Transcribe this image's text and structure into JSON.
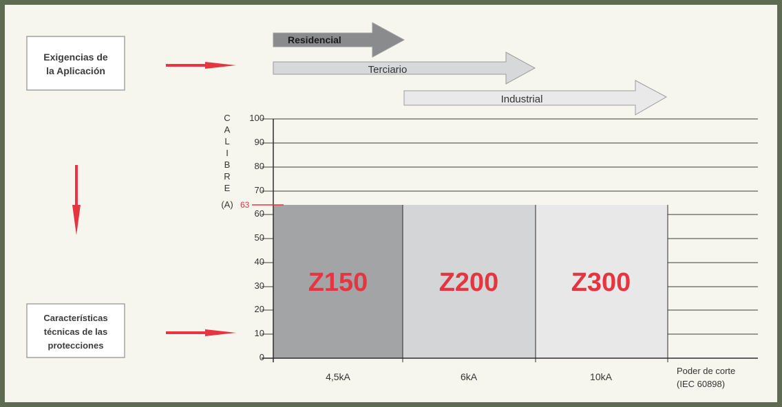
{
  "left_boxes": {
    "top": [
      "Exigencias de",
      "la Aplicación"
    ],
    "bottom": [
      "Características",
      "técnicas de las",
      "protecciones"
    ]
  },
  "application_arrows": [
    {
      "label": "Residencial",
      "color": "#8a8b8d"
    },
    {
      "label": "Terciario",
      "color": "#d7d8d9"
    },
    {
      "label": "Industrial",
      "color": "#e8e9e8"
    }
  ],
  "axis": {
    "ylabel_letters": [
      "C",
      "A",
      "L",
      "I",
      "B",
      "R",
      "E",
      "(A)"
    ],
    "y_ticks": [
      "100",
      "90",
      "80",
      "70",
      "60",
      "50",
      "40",
      "30",
      "20",
      "10",
      "0"
    ],
    "marker": "63",
    "x_ticks": [
      "4,5kA",
      "6kA",
      "10kA"
    ],
    "x_end_label": [
      "Poder de corte",
      "(IEC 60898)"
    ]
  },
  "products": [
    {
      "name": "Z150",
      "color": "#a3a4a6"
    },
    {
      "name": "Z200",
      "color": "#d4d5d6"
    },
    {
      "name": "Z300",
      "color": "#e7e8e7"
    }
  ],
  "colors": {
    "frame_bg": "#5e6a52",
    "panel_bg": "#f6f6ee",
    "accent_red": "#e63540"
  }
}
